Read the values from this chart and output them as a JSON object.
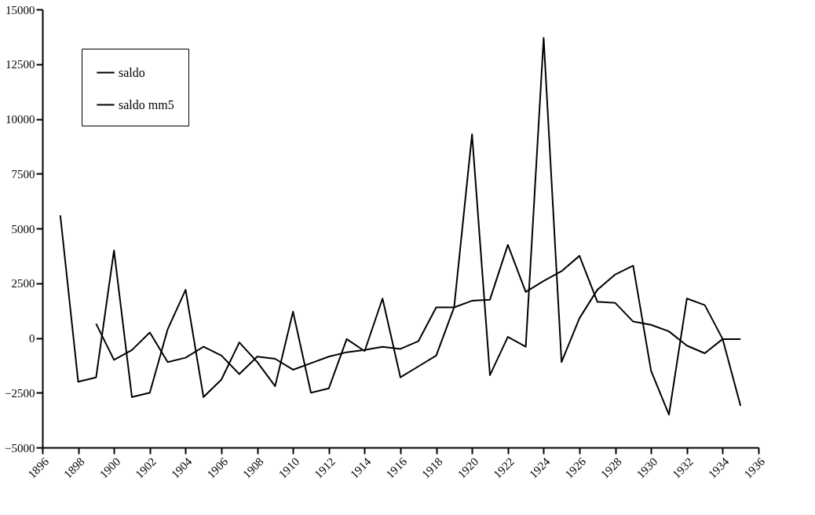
{
  "chart_data": {
    "type": "line",
    "xlim": [
      1896,
      1936
    ],
    "xticks": [
      1896,
      1898,
      1900,
      1902,
      1904,
      1906,
      1908,
      1910,
      1912,
      1914,
      1916,
      1918,
      1920,
      1922,
      1924,
      1926,
      1928,
      1930,
      1932,
      1934,
      1936
    ],
    "ylim": [
      -5000,
      15000
    ],
    "yticks": [
      -5000,
      -2500,
      0,
      2500,
      5000,
      7500,
      10000,
      12500,
      15000
    ],
    "grid": false,
    "legend": "top left",
    "marker": "none",
    "line_style": "solid",
    "series": [
      {
        "name": "saldo",
        "color": "#000000",
        "x": [
          1897,
          1898,
          1899,
          1900,
          1901,
          1902,
          1903,
          1904,
          1905,
          1906,
          1907,
          1908,
          1909,
          1910,
          1911,
          1912,
          1913,
          1914,
          1915,
          1916,
          1917,
          1918,
          1919,
          1920,
          1921,
          1922,
          1923,
          1924,
          1925,
          1926,
          1927,
          1928,
          1929,
          1930,
          1931,
          1932,
          1933,
          1934,
          1935
        ],
        "values": [
          5600,
          -2000,
          -1800,
          4000,
          -2700,
          -2500,
          400,
          2200,
          -2700,
          -1900,
          -200,
          -1100,
          -2200,
          1200,
          -2500,
          -2300,
          -50,
          -600,
          1800,
          -1800,
          -1300,
          -800,
          1400,
          9300,
          -1700,
          50,
          -400,
          13700,
          -1100,
          900,
          2200,
          2900,
          3300,
          -1500,
          -3500,
          1800,
          1500,
          -50,
          -3100
        ]
      },
      {
        "name": "saldo mm5",
        "color": "#000000",
        "x": [
          1899,
          1900,
          1901,
          1902,
          1903,
          1904,
          1905,
          1906,
          1907,
          1908,
          1909,
          1910,
          1911,
          1912,
          1913,
          1914,
          1915,
          1916,
          1917,
          1918,
          1919,
          1920,
          1921,
          1922,
          1923,
          1924,
          1925,
          1926,
          1927,
          1928,
          1929,
          1930,
          1931,
          1932,
          1933,
          1934,
          1935
        ],
        "values": [
          650,
          -1000,
          -550,
          250,
          -1100,
          -900,
          -400,
          -800,
          -1650,
          -850,
          -950,
          -1450,
          -1150,
          -850,
          -650,
          -550,
          -400,
          -500,
          -150,
          1400,
          1400,
          1700,
          1750,
          4250,
          2100,
          2600,
          3050,
          3750,
          1650,
          1600,
          750,
          600,
          300,
          -350,
          -700,
          -50,
          -50
        ]
      }
    ]
  }
}
